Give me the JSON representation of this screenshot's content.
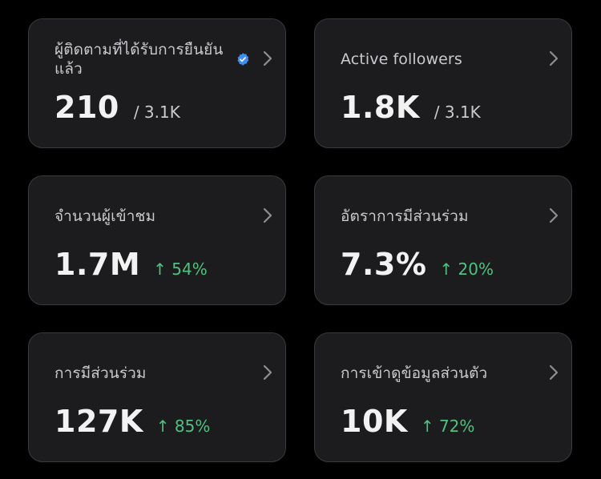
{
  "cards": [
    {
      "title": "ผู้ติดตามที่ได้รับการยืนยันแล้ว",
      "value": "210",
      "secondary": "/ 3.1K",
      "verified_icon": "verified-badge-icon"
    },
    {
      "title": "Active followers",
      "value": "1.8K",
      "secondary": "/ 3.1K"
    },
    {
      "title": "จำนวนผู้เข้าชม",
      "value": "1.7M",
      "change": "↑ 54%"
    },
    {
      "title": "อัตราการมีส่วนร่วม",
      "value": "7.3%",
      "change": "↑ 20%"
    },
    {
      "title": "การมีส่วนร่วม",
      "value": "127K",
      "change": "↑ 85%"
    },
    {
      "title": "การเข้าดูข้อมูลส่วนตัว",
      "value": "10K",
      "change": "↑ 72%"
    }
  ],
  "colors": {
    "background": "#000000",
    "card": "#1c1c1f",
    "positive": "#4fc27f",
    "verified": "#3d8ef0"
  },
  "icons": {
    "chevron": "chevron-right-icon",
    "verified": "verified-badge-icon"
  }
}
